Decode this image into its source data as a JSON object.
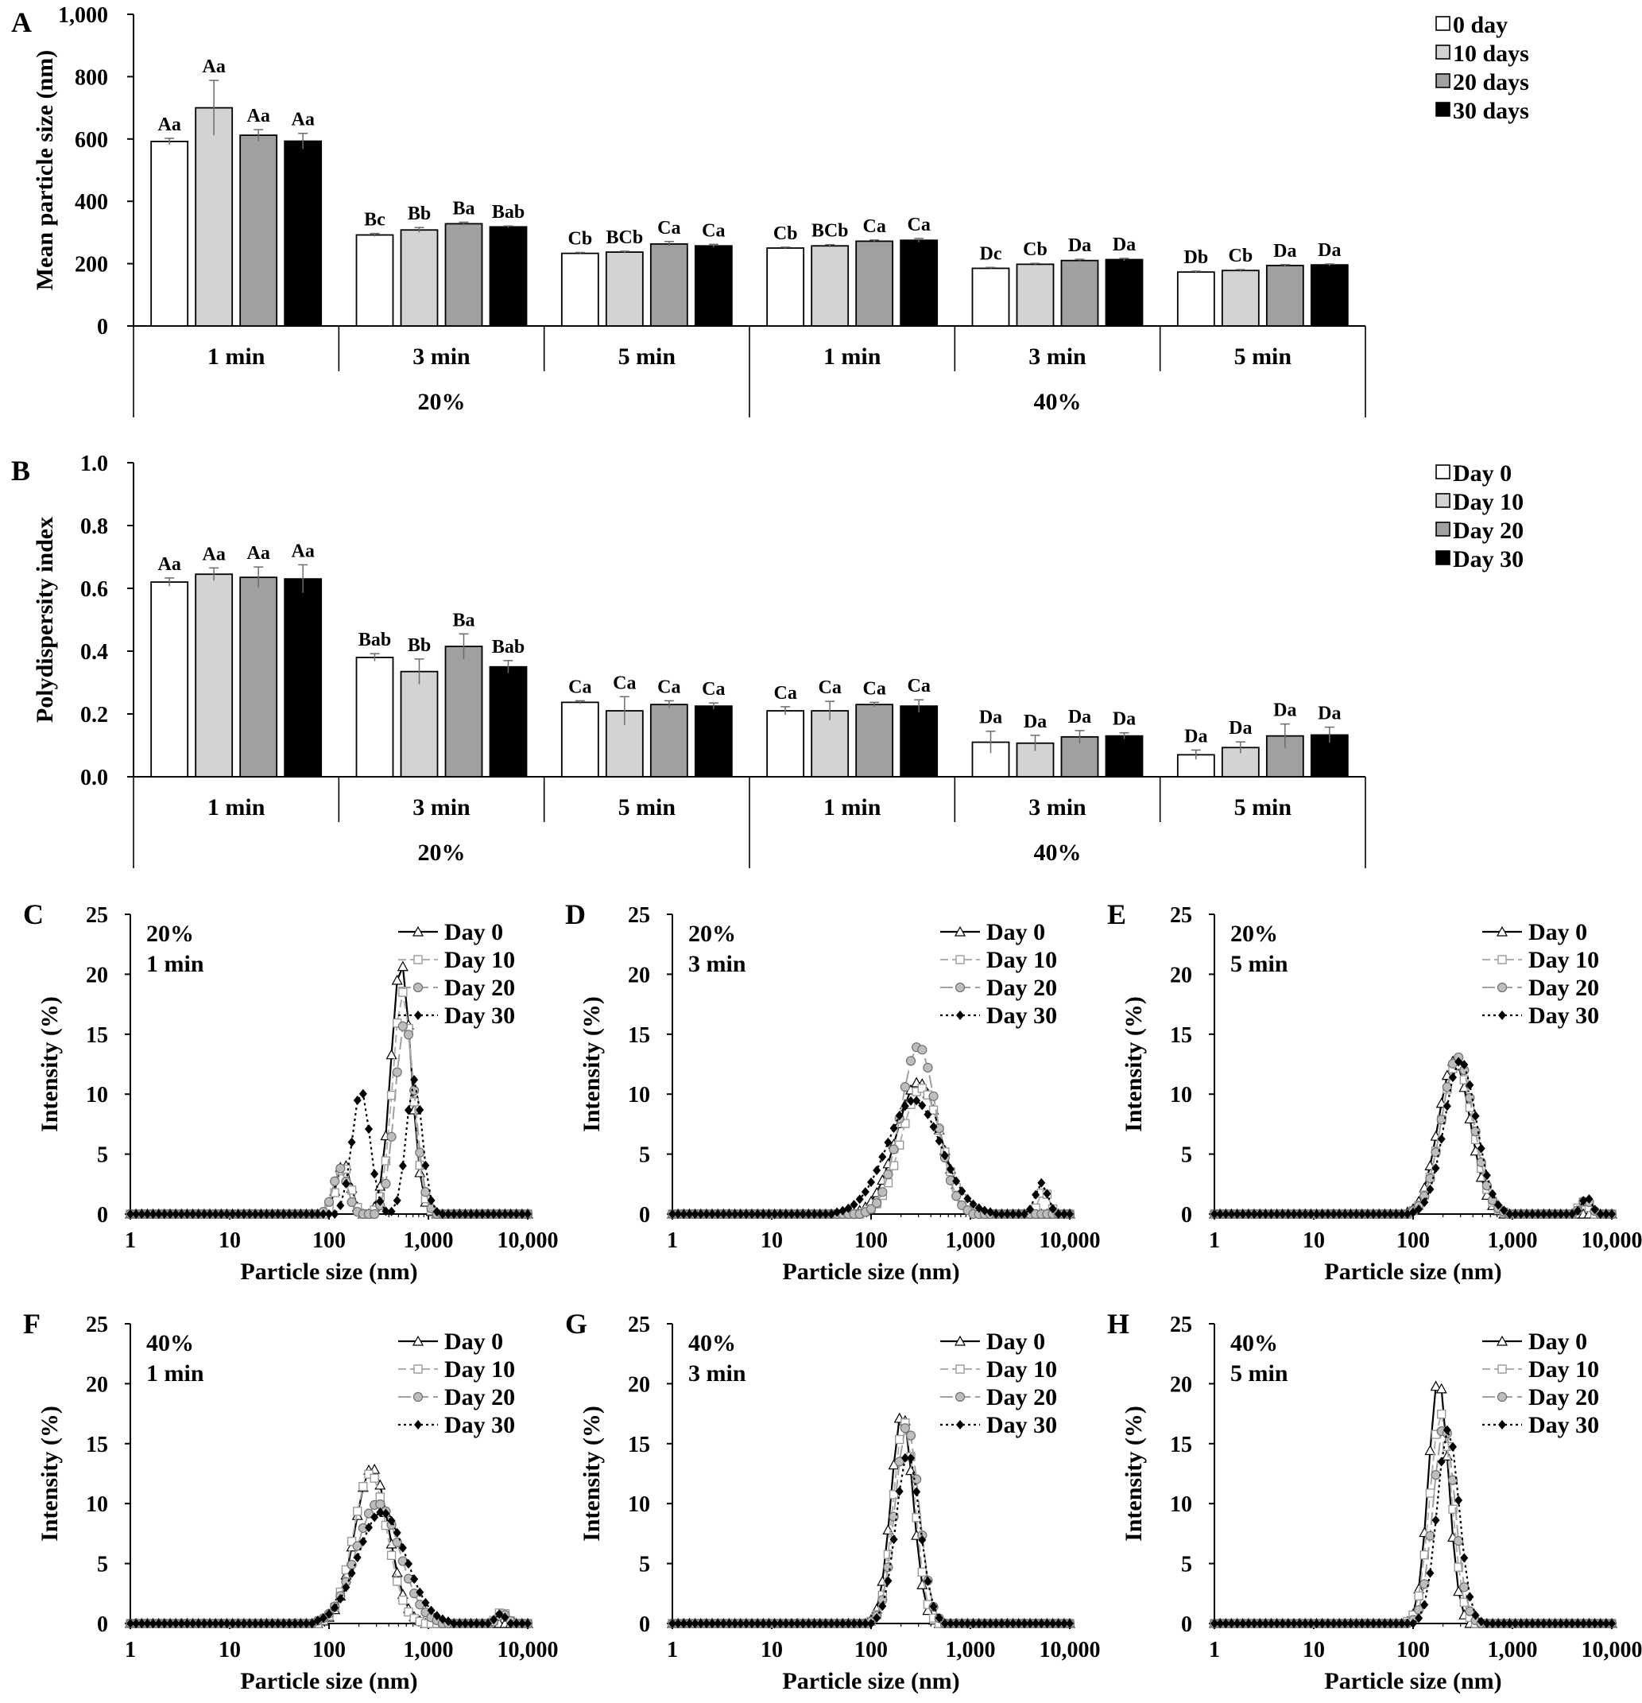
{
  "series_colors": [
    "#ffffff",
    "#d3d3d3",
    "#a0a0a0",
    "#000000"
  ],
  "chart_data": [
    {
      "id": "A",
      "panel_label": "A",
      "type": "bar",
      "ylabel": "Mean particle size (nm)",
      "ylim": [
        0,
        1000
      ],
      "yticks": [
        0,
        200,
        400,
        600,
        800,
        1000
      ],
      "ytick_labels": [
        "0",
        "200",
        "400",
        "600",
        "800",
        "1,000"
      ],
      "groups": [
        "1 min",
        "3 min",
        "5 min",
        "1 min",
        "3 min",
        "5 min"
      ],
      "supergroups": [
        "20%",
        "40%"
      ],
      "legend": [
        "0 day",
        "10 days",
        "20 days",
        "30 days"
      ],
      "values": [
        [
          592,
          700,
          612,
          593
        ],
        [
          292,
          308,
          328,
          318
        ],
        [
          233,
          237,
          263,
          257
        ],
        [
          250,
          257,
          272,
          275
        ],
        [
          185,
          198,
          210,
          213
        ],
        [
          173,
          178,
          194,
          196
        ]
      ],
      "errors": [
        [
          10,
          88,
          18,
          25
        ],
        [
          5,
          8,
          5,
          3
        ],
        [
          3,
          3,
          8,
          5
        ],
        [
          3,
          4,
          4,
          6
        ],
        [
          3,
          3,
          4,
          4
        ],
        [
          3,
          3,
          3,
          3
        ]
      ],
      "labels": [
        [
          "Aa",
          "Aa",
          "Aa",
          "Aa"
        ],
        [
          "Bc",
          "Bb",
          "Ba",
          "Bab"
        ],
        [
          "Cb",
          "BCb",
          "Ca",
          "Ca"
        ],
        [
          "Cb",
          "BCb",
          "Ca",
          "Ca"
        ],
        [
          "Dc",
          "Cb",
          "Da",
          "Da"
        ],
        [
          "Db",
          "Cb",
          "Da",
          "Da"
        ]
      ]
    },
    {
      "id": "B",
      "panel_label": "B",
      "type": "bar",
      "ylabel": "Polydispersity index",
      "ylim": [
        0,
        1.0
      ],
      "yticks": [
        0,
        0.2,
        0.4,
        0.6,
        0.8,
        1.0
      ],
      "ytick_labels": [
        "0.0",
        "0.2",
        "0.4",
        "0.6",
        "0.8",
        "1.0"
      ],
      "groups": [
        "1 min",
        "3 min",
        "5 min",
        "1 min",
        "3 min",
        "5 min"
      ],
      "supergroups": [
        "20%",
        "40%"
      ],
      "legend": [
        "Day 0",
        "Day 10",
        "Day 20",
        "Day 30"
      ],
      "values": [
        [
          0.62,
          0.645,
          0.635,
          0.63
        ],
        [
          0.38,
          0.335,
          0.415,
          0.35
        ],
        [
          0.237,
          0.21,
          0.23,
          0.225
        ],
        [
          0.21,
          0.21,
          0.23,
          0.225
        ],
        [
          0.11,
          0.107,
          0.127,
          0.13
        ],
        [
          0.07,
          0.093,
          0.13,
          0.133
        ]
      ],
      "errors": [
        [
          0.013,
          0.02,
          0.033,
          0.045
        ],
        [
          0.012,
          0.04,
          0.04,
          0.02
        ],
        [
          0.005,
          0.045,
          0.012,
          0.01
        ],
        [
          0.013,
          0.03,
          0.007,
          0.02
        ],
        [
          0.035,
          0.025,
          0.02,
          0.01
        ],
        [
          0.015,
          0.018,
          0.038,
          0.025
        ]
      ],
      "labels": [
        [
          "Aa",
          "Aa",
          "Aa",
          "Aa"
        ],
        [
          "Bab",
          "Bb",
          "Ba",
          "Bab"
        ],
        [
          "Ca",
          "Ca",
          "Ca",
          "Ca"
        ],
        [
          "Ca",
          "Ca",
          "Ca",
          "Ca"
        ],
        [
          "Da",
          "Da",
          "Da",
          "Da"
        ],
        [
          "Da",
          "Da",
          "Da",
          "Da"
        ]
      ]
    },
    {
      "id": "C",
      "panel_label": "C",
      "type": "line",
      "xscale": "log",
      "annotation": [
        "20%",
        "1 min"
      ],
      "xlabel": "Particle size (nm)",
      "ylabel": "Intensity (%)",
      "xticks": [
        1,
        10,
        100,
        1000,
        10000
      ],
      "xtick_labels": [
        "1",
        "10",
        "100",
        "1,000",
        "10,000"
      ],
      "yticks": [
        0,
        5,
        10,
        15,
        20,
        25
      ],
      "ylim": [
        0,
        25
      ],
      "xlim": [
        1,
        10000
      ],
      "legend": [
        "Day 0",
        "Day 10",
        "Day 20",
        "Day 30"
      ],
      "series": [
        {
          "name": "Day 0",
          "peaks": [
            [
              140,
              4.3,
              0.07
            ],
            [
              530,
              21,
              0.1
            ]
          ]
        },
        {
          "name": "Day 10",
          "peaks": [
            [
              140,
              4.0,
              0.07
            ],
            [
              550,
              18.5,
              0.1
            ]
          ]
        },
        {
          "name": "Day 20",
          "peaks": [
            [
              130,
              3.8,
              0.07
            ],
            [
              580,
              16,
              0.1
            ]
          ]
        },
        {
          "name": "Day 30",
          "peaks": [
            [
              210,
              10.3,
              0.09
            ],
            [
              720,
              11.2,
              0.08
            ]
          ]
        }
      ]
    },
    {
      "id": "D",
      "panel_label": "D",
      "type": "line",
      "xscale": "log",
      "annotation": [
        "20%",
        "3 min"
      ],
      "xlabel": "Particle size (nm)",
      "ylabel": "Intensity (%)",
      "xticks": [
        1,
        10,
        100,
        1000,
        10000
      ],
      "xtick_labels": [
        "1",
        "10",
        "100",
        "1,000",
        "10,000"
      ],
      "yticks": [
        0,
        5,
        10,
        15,
        20,
        25
      ],
      "ylim": [
        0,
        25
      ],
      "xlim": [
        1,
        10000
      ],
      "legend": [
        "Day 0",
        "Day 10",
        "Day 20",
        "Day 30"
      ],
      "series": [
        {
          "name": "Day 0",
          "peaks": [
            [
              300,
              11,
              0.22
            ]
          ]
        },
        {
          "name": "Day 10",
          "peaks": [
            [
              320,
              10.5,
              0.2
            ],
            [
              5500,
              2.0,
              0.05
            ]
          ]
        },
        {
          "name": "Day 20",
          "peaks": [
            [
              300,
              14,
              0.18
            ]
          ]
        },
        {
          "name": "Day 30",
          "peaks": [
            [
              270,
              9.5,
              0.27
            ],
            [
              5200,
              2.6,
              0.06
            ]
          ]
        }
      ]
    },
    {
      "id": "E",
      "panel_label": "E",
      "type": "line",
      "xscale": "log",
      "annotation": [
        "20%",
        "5 min"
      ],
      "xlabel": "Particle size (nm)",
      "ylabel": "Intensity (%)",
      "xticks": [
        1,
        10,
        100,
        1000,
        10000
      ],
      "xtick_labels": [
        "1",
        "10",
        "100",
        "1,000",
        "10,000"
      ],
      "yticks": [
        0,
        5,
        10,
        15,
        20,
        25
      ],
      "ylim": [
        0,
        25
      ],
      "xlim": [
        1,
        10000
      ],
      "legend": [
        "Day 0",
        "Day 10",
        "Day 20",
        "Day 30"
      ],
      "series": [
        {
          "name": "Day 0",
          "peaks": [
            [
              260,
              12.8,
              0.16
            ]
          ]
        },
        {
          "name": "Day 10",
          "peaks": [
            [
              275,
              12.5,
              0.16
            ],
            [
              5200,
              1.0,
              0.05
            ]
          ]
        },
        {
          "name": "Day 20",
          "peaks": [
            [
              280,
              13.1,
              0.16
            ],
            [
              5500,
              1.2,
              0.05
            ]
          ]
        },
        {
          "name": "Day 30",
          "peaks": [
            [
              300,
              12.8,
              0.16
            ],
            [
              5600,
              1.4,
              0.05
            ]
          ]
        }
      ]
    },
    {
      "id": "F",
      "panel_label": "F",
      "type": "line",
      "xscale": "log",
      "annotation": [
        "40%",
        "1 min"
      ],
      "xlabel": "Particle size (nm)",
      "ylabel": "Intensity (%)",
      "xticks": [
        1,
        10,
        100,
        1000,
        10000
      ],
      "xtick_labels": [
        "1",
        "10",
        "100",
        "1,000",
        "10,000"
      ],
      "yticks": [
        0,
        5,
        10,
        15,
        20,
        25
      ],
      "ylim": [
        0,
        25
      ],
      "xlim": [
        1,
        10000
      ],
      "legend": [
        "Day 0",
        "Day 10",
        "Day 20",
        "Day 30"
      ],
      "series": [
        {
          "name": "Day 0",
          "peaks": [
            [
              270,
              13,
              0.17
            ]
          ]
        },
        {
          "name": "Day 10",
          "peaks": [
            [
              260,
              12.5,
              0.17
            ],
            [
              5500,
              1.0,
              0.05
            ]
          ]
        },
        {
          "name": "Day 20",
          "peaks": [
            [
              310,
              10,
              0.22
            ],
            [
              5600,
              0.8,
              0.05
            ]
          ]
        },
        {
          "name": "Day 30",
          "peaks": [
            [
              340,
              9.3,
              0.24
            ],
            [
              5300,
              0.8,
              0.05
            ]
          ]
        }
      ]
    },
    {
      "id": "G",
      "panel_label": "G",
      "type": "line",
      "xscale": "log",
      "annotation": [
        "40%",
        "3 min"
      ],
      "xlabel": "Particle size (nm)",
      "ylabel": "Intensity (%)",
      "xticks": [
        1,
        10,
        100,
        1000,
        10000
      ],
      "xtick_labels": [
        "1",
        "10",
        "100",
        "1,000",
        "10,000"
      ],
      "yticks": [
        0,
        5,
        10,
        15,
        20,
        25
      ],
      "ylim": [
        0,
        25
      ],
      "xlim": [
        1,
        10000
      ],
      "legend": [
        "Day 0",
        "Day 10",
        "Day 20",
        "Day 30"
      ],
      "series": [
        {
          "name": "Day 0",
          "peaks": [
            [
              205,
              17.6,
              0.11
            ]
          ]
        },
        {
          "name": "Day 10",
          "peaks": [
            [
              215,
              16.8,
              0.11
            ]
          ]
        },
        {
          "name": "Day 20",
          "peaks": [
            [
              230,
              16.5,
              0.12
            ]
          ]
        },
        {
          "name": "Day 30",
          "peaks": [
            [
              235,
              14.2,
              0.12
            ]
          ]
        }
      ]
    },
    {
      "id": "H",
      "panel_label": "H",
      "type": "line",
      "xscale": "log",
      "annotation": [
        "40%",
        "5 min"
      ],
      "xlabel": "Particle size (nm)",
      "ylabel": "Intensity (%)",
      "xticks": [
        1,
        10,
        100,
        1000,
        10000
      ],
      "xtick_labels": [
        "1",
        "10",
        "100",
        "1,000",
        "10,000"
      ],
      "yticks": [
        0,
        5,
        10,
        15,
        20,
        25
      ],
      "ylim": [
        0,
        25
      ],
      "xlim": [
        1,
        10000
      ],
      "legend": [
        "Day 0",
        "Day 10",
        "Day 20",
        "Day 30"
      ],
      "series": [
        {
          "name": "Day 0",
          "peaks": [
            [
              180,
              20.5,
              0.1
            ]
          ]
        },
        {
          "name": "Day 10",
          "peaks": [
            [
              190,
              17.5,
              0.11
            ]
          ]
        },
        {
          "name": "Day 20",
          "peaks": [
            [
              205,
              16.5,
              0.11
            ]
          ]
        },
        {
          "name": "Day 30",
          "peaks": [
            [
              225,
              16.2,
              0.11
            ]
          ]
        }
      ]
    }
  ]
}
